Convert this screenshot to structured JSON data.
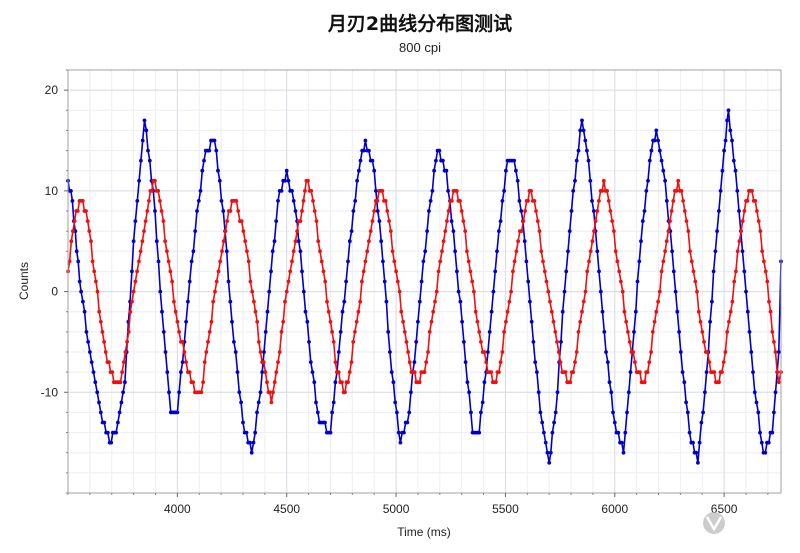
{
  "chart_data": {
    "type": "line",
    "title": "月刃2曲线分布图测试",
    "subtitle": "800 cpi",
    "xlabel": "Time (ms)",
    "ylabel": "Counts",
    "xlim": [
      3500,
      6760
    ],
    "ylim": [
      -20,
      22
    ],
    "x_ticks": [
      4000,
      4500,
      5000,
      5500,
      6000,
      6500
    ],
    "y_ticks": [
      -10,
      0,
      10,
      20
    ],
    "grid": true,
    "legend": "none",
    "series": [
      {
        "color": "#0000cc",
        "values": [
          [
            3500,
            11
          ],
          [
            3520,
            9
          ],
          [
            3540,
            4
          ],
          [
            3560,
            0
          ],
          [
            3600,
            -6
          ],
          [
            3650,
            -12
          ],
          [
            3690,
            -15
          ],
          [
            3720,
            -14
          ],
          [
            3760,
            -9
          ],
          [
            3800,
            5
          ],
          [
            3850,
            17
          ],
          [
            3890,
            10
          ],
          [
            3930,
            -2
          ],
          [
            3970,
            -12
          ],
          [
            4000,
            -12
          ],
          [
            4040,
            -3
          ],
          [
            4090,
            8
          ],
          [
            4130,
            14
          ],
          [
            4170,
            15
          ],
          [
            4210,
            8
          ],
          [
            4250,
            -3
          ],
          [
            4300,
            -13
          ],
          [
            4340,
            -16
          ],
          [
            4380,
            -10
          ],
          [
            4420,
            0
          ],
          [
            4460,
            9
          ],
          [
            4500,
            12
          ],
          [
            4540,
            8
          ],
          [
            4570,
            2
          ],
          [
            4610,
            -7
          ],
          [
            4650,
            -13
          ],
          [
            4700,
            -14
          ],
          [
            4730,
            -8
          ],
          [
            4780,
            3
          ],
          [
            4830,
            12
          ],
          [
            4860,
            15
          ],
          [
            4900,
            12
          ],
          [
            4940,
            3
          ],
          [
            4980,
            -8
          ],
          [
            5020,
            -15
          ],
          [
            5060,
            -12
          ],
          [
            5100,
            -3
          ],
          [
            5150,
            8
          ],
          [
            5190,
            14
          ],
          [
            5230,
            12
          ],
          [
            5270,
            4
          ],
          [
            5310,
            -5
          ],
          [
            5350,
            -14
          ],
          [
            5380,
            -14
          ],
          [
            5420,
            -6
          ],
          [
            5470,
            6
          ],
          [
            5510,
            13
          ],
          [
            5540,
            13
          ],
          [
            5580,
            7
          ],
          [
            5620,
            -3
          ],
          [
            5660,
            -12
          ],
          [
            5700,
            -17
          ],
          [
            5730,
            -12
          ],
          [
            5770,
            0
          ],
          [
            5810,
            10
          ],
          [
            5850,
            17
          ],
          [
            5880,
            13
          ],
          [
            5920,
            4
          ],
          [
            5960,
            -6
          ],
          [
            6000,
            -13
          ],
          [
            6040,
            -16
          ],
          [
            6080,
            -6
          ],
          [
            6120,
            5
          ],
          [
            6160,
            13
          ],
          [
            6190,
            16
          ],
          [
            6230,
            11
          ],
          [
            6270,
            2
          ],
          [
            6310,
            -8
          ],
          [
            6350,
            -15
          ],
          [
            6380,
            -17
          ],
          [
            6420,
            -8
          ],
          [
            6460,
            4
          ],
          [
            6500,
            14
          ],
          [
            6520,
            18
          ],
          [
            6560,
            10
          ],
          [
            6600,
            0
          ],
          [
            6640,
            -10
          ],
          [
            6680,
            -16
          ],
          [
            6720,
            -14
          ],
          [
            6750,
            -6
          ],
          [
            6760,
            3
          ]
        ]
      },
      {
        "color": "#ee1111",
        "values": [
          [
            3500,
            2
          ],
          [
            3530,
            7
          ],
          [
            3560,
            9
          ],
          [
            3590,
            7
          ],
          [
            3620,
            2
          ],
          [
            3650,
            -3
          ],
          [
            3680,
            -7
          ],
          [
            3710,
            -9
          ],
          [
            3740,
            -9
          ],
          [
            3770,
            -5
          ],
          [
            3800,
            0
          ],
          [
            3840,
            5
          ],
          [
            3870,
            9
          ],
          [
            3890,
            11
          ],
          [
            3920,
            9
          ],
          [
            3960,
            3
          ],
          [
            4000,
            -3
          ],
          [
            4040,
            -7
          ],
          [
            4080,
            -10
          ],
          [
            4110,
            -10
          ],
          [
            4140,
            -5
          ],
          [
            4180,
            1
          ],
          [
            4220,
            6
          ],
          [
            4250,
            9
          ],
          [
            4270,
            9
          ],
          [
            4310,
            5
          ],
          [
            4350,
            -1
          ],
          [
            4380,
            -6
          ],
          [
            4410,
            -9
          ],
          [
            4430,
            -11
          ],
          [
            4460,
            -7
          ],
          [
            4500,
            0
          ],
          [
            4540,
            5
          ],
          [
            4570,
            8
          ],
          [
            4590,
            11
          ],
          [
            4620,
            9
          ],
          [
            4660,
            3
          ],
          [
            4700,
            -3
          ],
          [
            4730,
            -8
          ],
          [
            4760,
            -10
          ],
          [
            4780,
            -9
          ],
          [
            4820,
            -3
          ],
          [
            4860,
            3
          ],
          [
            4900,
            8
          ],
          [
            4930,
            10
          ],
          [
            4960,
            8
          ],
          [
            5000,
            2
          ],
          [
            5040,
            -4
          ],
          [
            5070,
            -8
          ],
          [
            5100,
            -9
          ],
          [
            5130,
            -8
          ],
          [
            5170,
            -2
          ],
          [
            5210,
            4
          ],
          [
            5240,
            8
          ],
          [
            5270,
            10
          ],
          [
            5300,
            8
          ],
          [
            5340,
            2
          ],
          [
            5380,
            -4
          ],
          [
            5420,
            -8
          ],
          [
            5450,
            -9
          ],
          [
            5470,
            -8
          ],
          [
            5510,
            -2
          ],
          [
            5550,
            4
          ],
          [
            5590,
            8
          ],
          [
            5610,
            10
          ],
          [
            5640,
            8
          ],
          [
            5680,
            2
          ],
          [
            5720,
            -3
          ],
          [
            5760,
            -8
          ],
          [
            5790,
            -9
          ],
          [
            5810,
            -8
          ],
          [
            5850,
            -2
          ],
          [
            5890,
            4
          ],
          [
            5920,
            8
          ],
          [
            5950,
            11
          ],
          [
            5980,
            8
          ],
          [
            6020,
            2
          ],
          [
            6060,
            -4
          ],
          [
            6100,
            -8
          ],
          [
            6130,
            -9
          ],
          [
            6150,
            -8
          ],
          [
            6190,
            -2
          ],
          [
            6230,
            4
          ],
          [
            6260,
            8
          ],
          [
            6290,
            11
          ],
          [
            6320,
            8
          ],
          [
            6360,
            2
          ],
          [
            6400,
            -4
          ],
          [
            6440,
            -8
          ],
          [
            6470,
            -9
          ],
          [
            6490,
            -8
          ],
          [
            6530,
            -2
          ],
          [
            6570,
            5
          ],
          [
            6600,
            9
          ],
          [
            6620,
            10
          ],
          [
            6650,
            8
          ],
          [
            6690,
            2
          ],
          [
            6720,
            -4
          ],
          [
            6750,
            -9
          ],
          [
            6760,
            -8
          ]
        ]
      }
    ]
  },
  "watermark": "小黑盒",
  "colors": {
    "blue": "#0000cc",
    "red": "#ee1111",
    "grid": "#e6e8f0",
    "frame": "#a0a0a0"
  }
}
